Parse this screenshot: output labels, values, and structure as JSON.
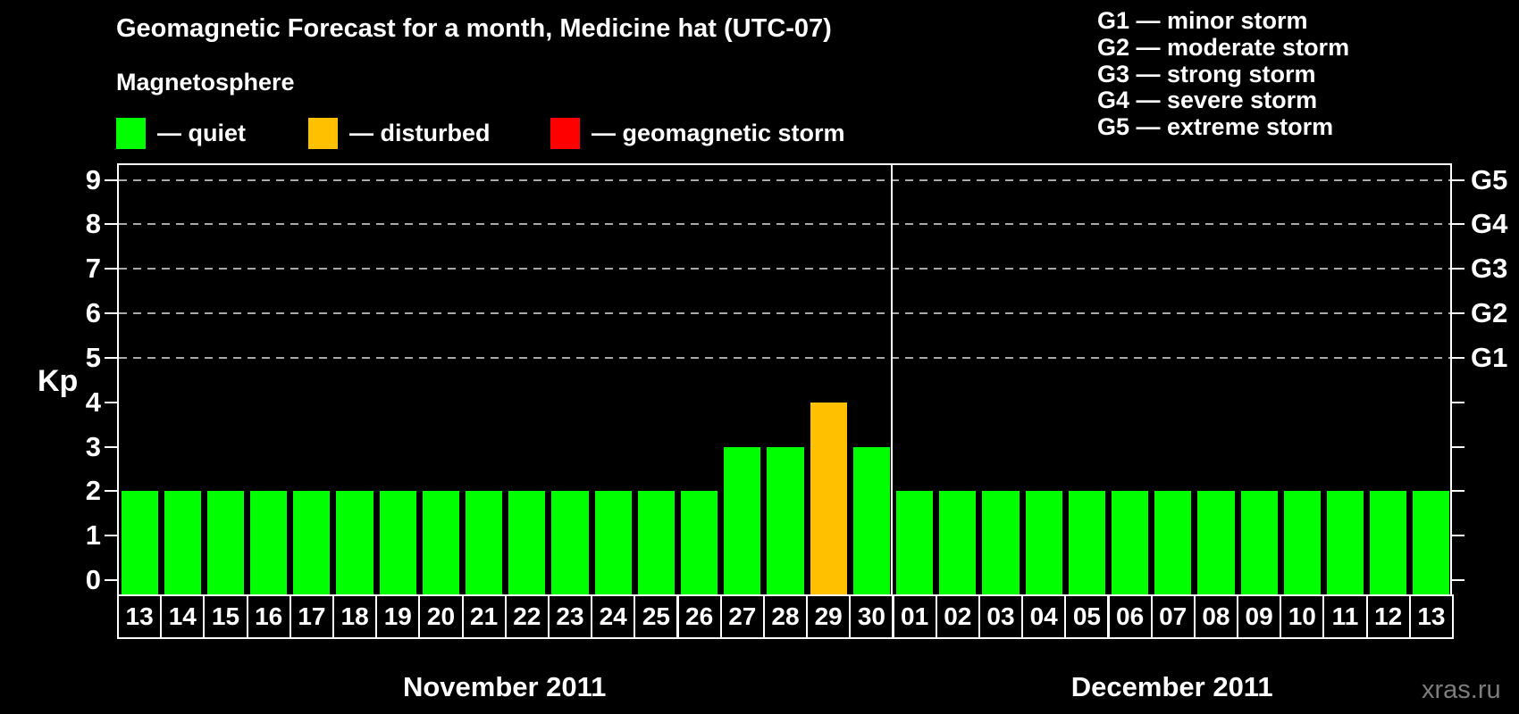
{
  "header": {
    "title": "Geomagnetic Forecast for a month, Medicine hat (UTC-07)",
    "legend_title": "Magnetosphere",
    "legend": [
      {
        "state": "quiet",
        "label": "— quiet",
        "color": "#00ff00"
      },
      {
        "state": "disturbed",
        "label": "— disturbed",
        "color": "#ffc000"
      },
      {
        "state": "storm",
        "label": "— geomagnetic storm",
        "color": "#ff0000"
      }
    ],
    "g_scale_legend": [
      "G1 — minor storm",
      "G2 — moderate storm",
      "G3 — strong storm",
      "G4 — severe storm",
      "G5 — extreme storm"
    ]
  },
  "chart_data": {
    "type": "bar",
    "title": "Geomagnetic Forecast for a month, Medicine hat (UTC-07)",
    "ylabel": "Kp",
    "ylim": [
      0,
      9
    ],
    "yticks": [
      "0",
      "1",
      "2",
      "3",
      "4",
      "5",
      "6",
      "7",
      "8",
      "9"
    ],
    "gridlines_at": [
      5,
      6,
      7,
      8,
      9
    ],
    "grid": true,
    "right_axis": [
      {
        "kp": 5,
        "label": "G1"
      },
      {
        "kp": 6,
        "label": "G2"
      },
      {
        "kp": 7,
        "label": "G3"
      },
      {
        "kp": 8,
        "label": "G4"
      },
      {
        "kp": 9,
        "label": "G5"
      }
    ],
    "color_map": {
      "quiet": "#00ff00",
      "disturbed": "#ffc000",
      "storm": "#ff0000"
    },
    "groups": [
      {
        "month_label": "November 2011",
        "days": [
          "13",
          "14",
          "15",
          "16",
          "17",
          "18",
          "19",
          "20",
          "21",
          "22",
          "23",
          "24",
          "25",
          "26",
          "27",
          "28",
          "29",
          "30"
        ],
        "values": [
          2,
          2,
          2,
          2,
          2,
          2,
          2,
          2,
          2,
          2,
          2,
          2,
          2,
          2,
          3,
          3,
          4,
          3
        ],
        "states": [
          "quiet",
          "quiet",
          "quiet",
          "quiet",
          "quiet",
          "quiet",
          "quiet",
          "quiet",
          "quiet",
          "quiet",
          "quiet",
          "quiet",
          "quiet",
          "quiet",
          "quiet",
          "quiet",
          "disturbed",
          "quiet"
        ]
      },
      {
        "month_label": "December 2011",
        "days": [
          "01",
          "02",
          "03",
          "04",
          "05",
          "06",
          "07",
          "08",
          "09",
          "10",
          "11",
          "12",
          "13"
        ],
        "values": [
          2,
          2,
          2,
          2,
          2,
          2,
          2,
          2,
          2,
          2,
          2,
          2,
          2
        ],
        "states": [
          "quiet",
          "quiet",
          "quiet",
          "quiet",
          "quiet",
          "quiet",
          "quiet",
          "quiet",
          "quiet",
          "quiet",
          "quiet",
          "quiet",
          "quiet"
        ]
      }
    ]
  },
  "watermark": "xras.ru"
}
